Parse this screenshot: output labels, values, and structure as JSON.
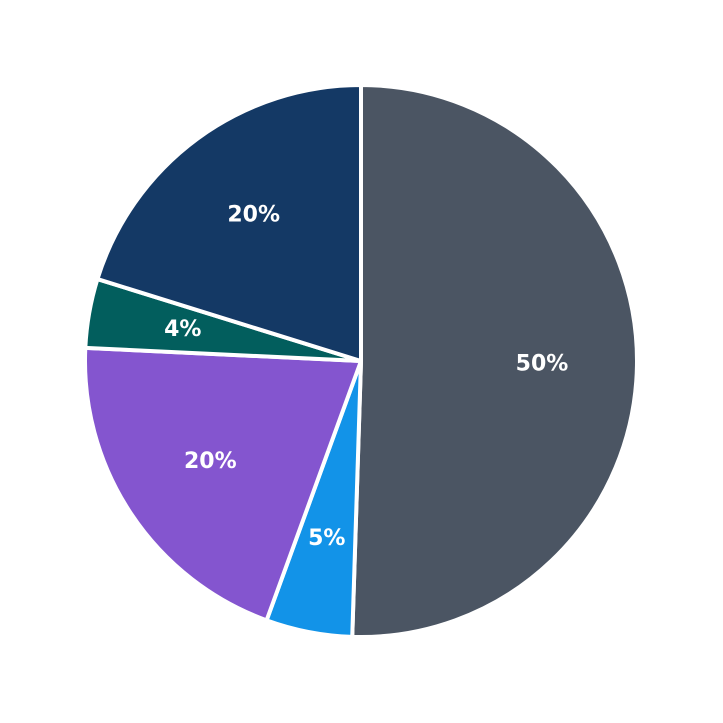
{
  "chart_data": {
    "type": "pie",
    "start_angle_deg": 90,
    "direction": "clockwise",
    "slices": [
      {
        "value": 50,
        "label": "50%",
        "color": "#4b5563"
      },
      {
        "value": 5,
        "label": "5%",
        "color": "#1293e8"
      },
      {
        "value": 20,
        "label": "20%",
        "color": "#8455cf"
      },
      {
        "value": 4,
        "label": "4%",
        "color": "#025e5d"
      },
      {
        "value": 20,
        "label": "20%",
        "color": "#143965"
      }
    ],
    "legend": "none"
  }
}
